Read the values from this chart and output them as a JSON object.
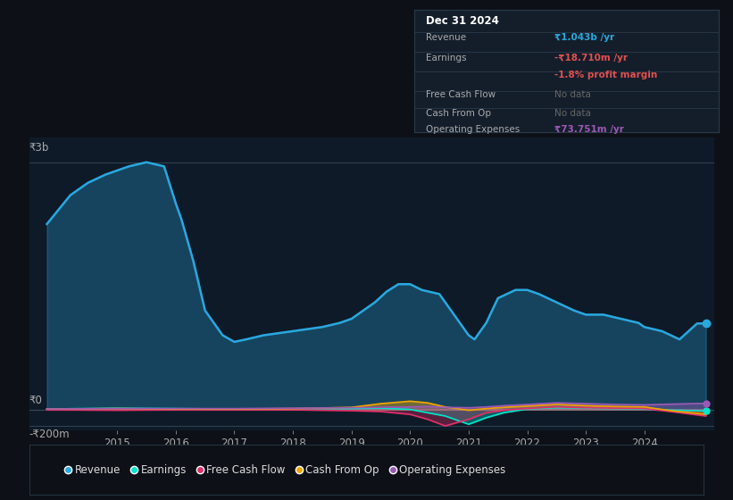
{
  "bg_color": "#0d1117",
  "plot_bg_color": "#0e1a27",
  "y_label_top": "₹3b",
  "y_label_zero": "₹0",
  "y_label_bottom": "-₹200m",
  "x_ticks": [
    2015,
    2016,
    2017,
    2018,
    2019,
    2020,
    2021,
    2022,
    2023,
    2024
  ],
  "ylim": [
    -250,
    3300
  ],
  "revenue_color": "#29a8e0",
  "earnings_color": "#00e5cc",
  "fcf_color": "#e0306a",
  "cashfromop_color": "#f0a500",
  "opex_color": "#9b59b6",
  "info_box": {
    "title": "Dec 31 2024",
    "revenue_label": "Revenue",
    "revenue_value": "₹1.043b /yr",
    "earnings_label": "Earnings",
    "earnings_value": "-₹18.710m /yr",
    "margin_value": "-1.8% profit margin",
    "fcf_label": "Free Cash Flow",
    "fcf_value": "No data",
    "cashop_label": "Cash From Op",
    "cashop_value": "No data",
    "opex_label": "Operating Expenses",
    "opex_value": "₹73.751m /yr"
  },
  "revenue": {
    "x": [
      2013.8,
      2014.2,
      2014.5,
      2014.8,
      2015.0,
      2015.2,
      2015.5,
      2015.8,
      2016.0,
      2016.1,
      2016.3,
      2016.5,
      2016.8,
      2017.0,
      2017.2,
      2017.5,
      2017.8,
      2018.0,
      2018.3,
      2018.5,
      2018.8,
      2019.0,
      2019.2,
      2019.4,
      2019.6,
      2019.8,
      2020.0,
      2020.2,
      2020.5,
      2020.8,
      2021.0,
      2021.1,
      2021.3,
      2021.5,
      2021.8,
      2022.0,
      2022.2,
      2022.5,
      2022.8,
      2023.0,
      2023.3,
      2023.6,
      2023.9,
      2024.0,
      2024.3,
      2024.6,
      2024.9,
      2025.05
    ],
    "y": [
      2250,
      2600,
      2750,
      2850,
      2900,
      2950,
      3000,
      2950,
      2500,
      2300,
      1800,
      1200,
      900,
      820,
      850,
      900,
      930,
      950,
      980,
      1000,
      1050,
      1100,
      1200,
      1300,
      1430,
      1520,
      1520,
      1450,
      1400,
      1100,
      900,
      850,
      1050,
      1350,
      1450,
      1450,
      1400,
      1300,
      1200,
      1150,
      1150,
      1100,
      1050,
      1000,
      950,
      850,
      1043,
      1043
    ]
  },
  "earnings": {
    "x": [
      2013.8,
      2015.0,
      2016.0,
      2017.0,
      2018.0,
      2019.0,
      2019.5,
      2020.0,
      2020.3,
      2020.6,
      2021.0,
      2021.3,
      2021.6,
      2022.0,
      2022.5,
      2023.0,
      2023.5,
      2024.0,
      2024.5,
      2025.05
    ],
    "y": [
      5,
      15,
      10,
      5,
      5,
      10,
      15,
      0,
      -40,
      -80,
      -180,
      -100,
      -40,
      5,
      20,
      15,
      10,
      5,
      -10,
      -18.71
    ]
  },
  "fcf": {
    "x": [
      2013.8,
      2015.0,
      2016.0,
      2017.0,
      2018.0,
      2019.0,
      2019.5,
      2020.0,
      2020.3,
      2020.6,
      2021.0,
      2021.3,
      2021.6,
      2022.0,
      2022.5,
      2023.0,
      2023.5,
      2024.0,
      2024.5,
      2025.05
    ],
    "y": [
      -5,
      -10,
      -5,
      -5,
      -5,
      -15,
      -25,
      -60,
      -120,
      -200,
      -120,
      -40,
      -10,
      10,
      30,
      20,
      15,
      10,
      -30,
      -80
    ]
  },
  "cashfromop": {
    "x": [
      2013.8,
      2015.0,
      2016.0,
      2017.0,
      2018.0,
      2019.0,
      2019.5,
      2020.0,
      2020.3,
      2020.6,
      2021.0,
      2021.3,
      2021.6,
      2022.0,
      2022.5,
      2023.0,
      2023.5,
      2024.0,
      2024.5,
      2025.05
    ],
    "y": [
      5,
      10,
      5,
      5,
      10,
      25,
      70,
      100,
      80,
      30,
      -10,
      10,
      25,
      40,
      60,
      45,
      35,
      30,
      -20,
      -60
    ]
  },
  "opex": {
    "x": [
      2013.8,
      2015.0,
      2016.0,
      2017.0,
      2018.0,
      2019.0,
      2019.5,
      2020.0,
      2020.3,
      2020.6,
      2021.0,
      2021.3,
      2021.6,
      2022.0,
      2022.5,
      2023.0,
      2023.5,
      2024.0,
      2024.5,
      2025.05
    ],
    "y": [
      5,
      10,
      10,
      10,
      15,
      20,
      25,
      30,
      35,
      25,
      20,
      30,
      45,
      60,
      80,
      70,
      60,
      55,
      65,
      73.751
    ]
  },
  "legend": [
    {
      "label": "Revenue",
      "color": "#29a8e0"
    },
    {
      "label": "Earnings",
      "color": "#00e5cc"
    },
    {
      "label": "Free Cash Flow",
      "color": "#e0306a"
    },
    {
      "label": "Cash From Op",
      "color": "#f0a500"
    },
    {
      "label": "Operating Expenses",
      "color": "#9b59b6"
    }
  ]
}
